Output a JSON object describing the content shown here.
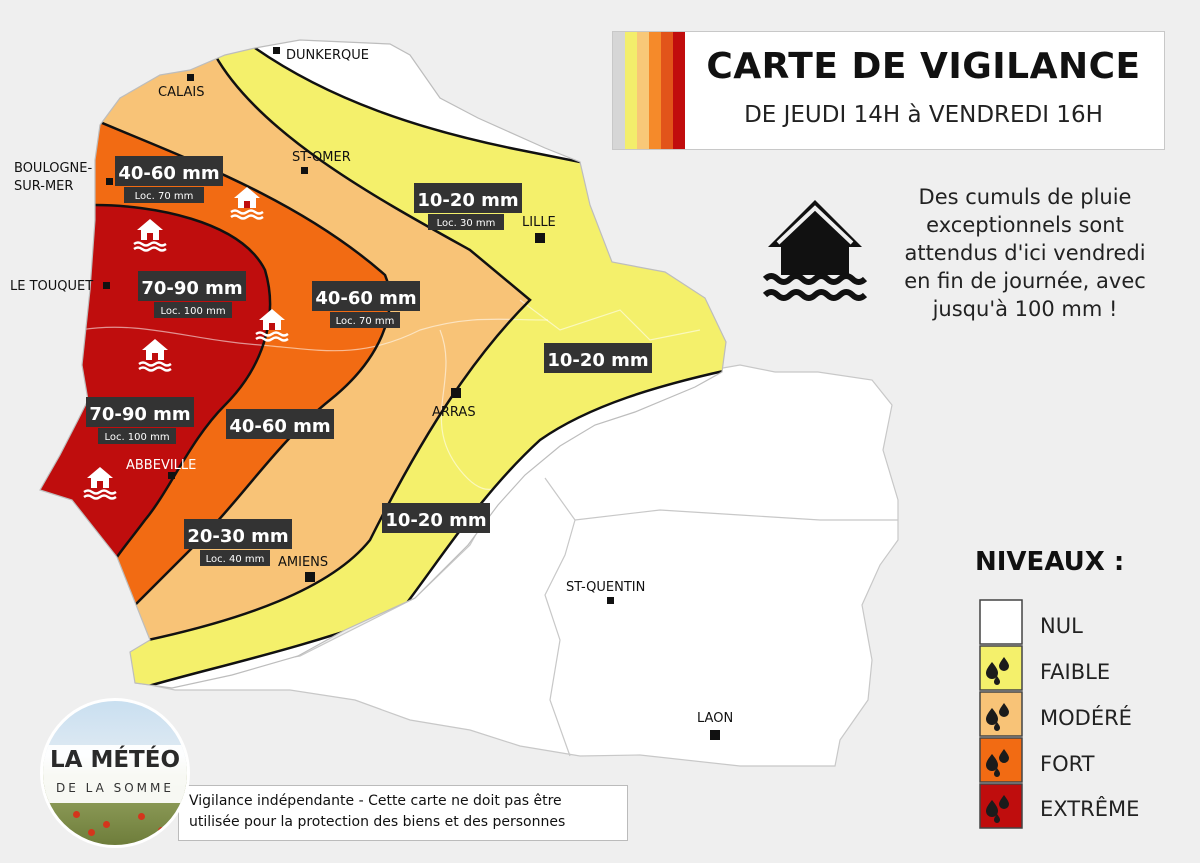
{
  "title": {
    "main": "CARTE DE VIGILANCE",
    "sub": "DE JEUDI 14H à VENDREDI 16H",
    "stripe_colors": [
      "#d6d6d6",
      "#f3ee6b",
      "#f8c878",
      "#f58a2a",
      "#e2541a",
      "#c10d0d"
    ]
  },
  "alert": {
    "icon": "flooded-house-icon",
    "lines": [
      "Des cumuls de pluie",
      "exceptionnels sont",
      "attendus d'ici vendredi",
      "en fin de journée, avec",
      "jusqu'à 100 mm !"
    ]
  },
  "colors": {
    "nul": "#ffffff",
    "faible": "#f4f06b",
    "modere": "#f8c377",
    "fort": "#f26b13",
    "extreme": "#bf0d0d",
    "background": "#efefef",
    "label_bg": "#333333"
  },
  "cities": [
    {
      "name": "DUNKERQUE"
    },
    {
      "name": "CALAIS"
    },
    {
      "name": "BOULOGNE-"
    },
    {
      "name": "SUR-MER"
    },
    {
      "name": "ST-OMER"
    },
    {
      "name": "LILLE"
    },
    {
      "name": "LE TOUQUET"
    },
    {
      "name": "ARRAS"
    },
    {
      "name": "ABBEVILLE"
    },
    {
      "name": "AMIENS"
    },
    {
      "name": "ST-QUENTIN"
    },
    {
      "name": "LAON"
    }
  ],
  "rain_labels": [
    {
      "amount": "40-60 mm",
      "local": "Loc. 70 mm"
    },
    {
      "amount": "10-20 mm",
      "local": "Loc. 30 mm"
    },
    {
      "amount": "70-90 mm",
      "local": "Loc. 100 mm"
    },
    {
      "amount": "40-60 mm",
      "local": "Loc. 70 mm"
    },
    {
      "amount": "10-20 mm",
      "local": ""
    },
    {
      "amount": "70-90 mm",
      "local": "Loc. 100 mm"
    },
    {
      "amount": "40-60 mm",
      "local": ""
    },
    {
      "amount": "10-20 mm",
      "local": ""
    },
    {
      "amount": "20-30 mm",
      "local": "Loc. 40 mm"
    }
  ],
  "legend": {
    "title": "NIVEAUX :",
    "levels": [
      {
        "label": "NUL",
        "icon": ""
      },
      {
        "label": "FAIBLE",
        "icon": "raindrops-icon"
      },
      {
        "label": "MODÉRÉ",
        "icon": "raindrops-icon"
      },
      {
        "label": "FORT",
        "icon": "raindrops-icon"
      },
      {
        "label": "EXTRÊME",
        "icon": "raindrops-icon"
      }
    ]
  },
  "disclaimer": {
    "line1": "Vigilance indépendante - Cette carte ne doit pas être",
    "line2": "utilisée pour la protection des biens et des personnes"
  },
  "logo": {
    "line1": "LA MÉTÉO",
    "line2": "DE LA SOMME"
  }
}
